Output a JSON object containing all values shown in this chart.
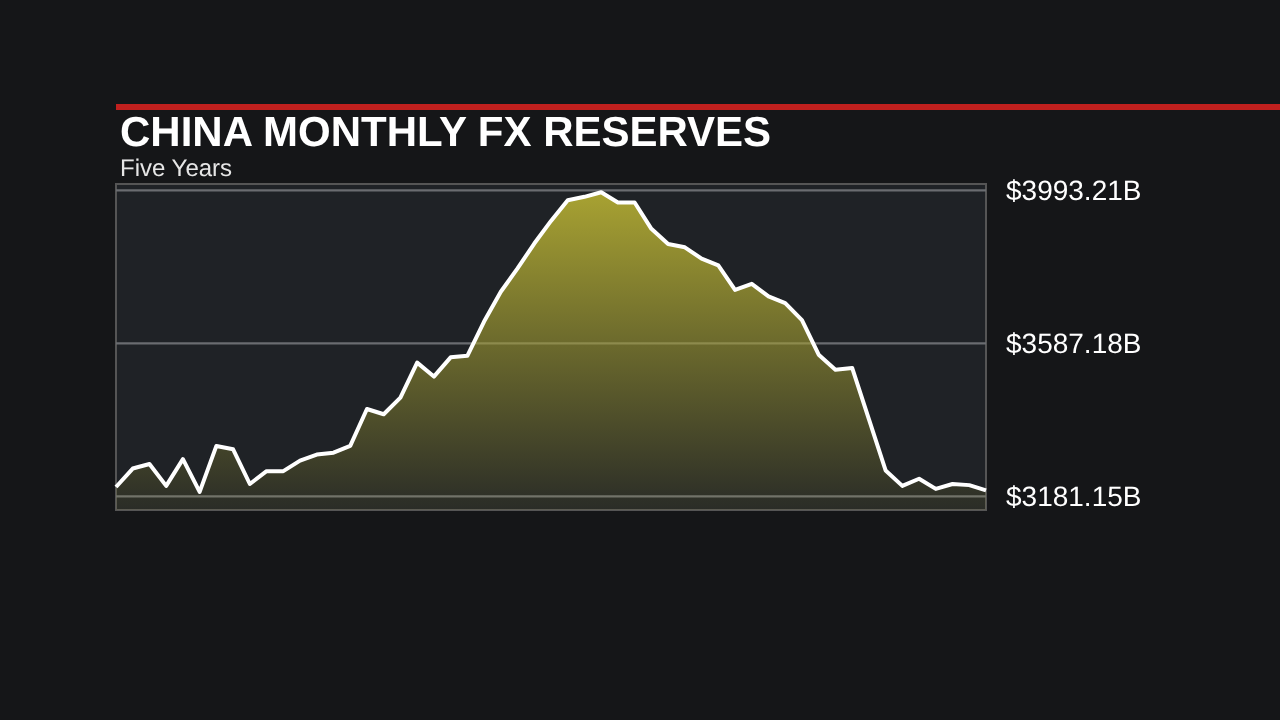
{
  "chart_data": {
    "type": "area",
    "title": "CHINA MONTHLY FX RESERVES",
    "subtitle": "Five Years",
    "categories": [
      null,
      null,
      null,
      null,
      null,
      null,
      null,
      null,
      null,
      null,
      null,
      null,
      null,
      null,
      null,
      null,
      null,
      null,
      null,
      null,
      null,
      null,
      null,
      null,
      null,
      null,
      null,
      null,
      null,
      null,
      null,
      null,
      null,
      null,
      null,
      null,
      null,
      null,
      null,
      null,
      null,
      null,
      null,
      null,
      null,
      null,
      null,
      null,
      null,
      null,
      null,
      null,
      null
    ],
    "values": [
      3206,
      3255,
      3267,
      3209,
      3280,
      3193,
      3315,
      3306,
      3214,
      3248,
      3248,
      3276,
      3292,
      3297,
      3315,
      3413,
      3399,
      3443,
      3536,
      3499,
      3550,
      3554,
      3645,
      3724,
      3786,
      3852,
      3912,
      3967,
      3976,
      3988,
      3961,
      3961,
      3891,
      3851,
      3842,
      3812,
      3794,
      3729,
      3745,
      3712,
      3694,
      3649,
      3557,
      3517,
      3522,
      3386,
      3250,
      3209,
      3228,
      3201,
      3214,
      3211,
      3197
    ],
    "color": "#a8a232",
    "ylim": [
      3145,
      4010
    ],
    "yticks": [
      {
        "value": 3181.15,
        "label": "$3181.15B"
      },
      {
        "value": 3587.18,
        "label": "$3587.18B"
      },
      {
        "value": 3993.21,
        "label": "$3993.21B"
      }
    ],
    "grid": "y",
    "tick_labels": "y"
  }
}
